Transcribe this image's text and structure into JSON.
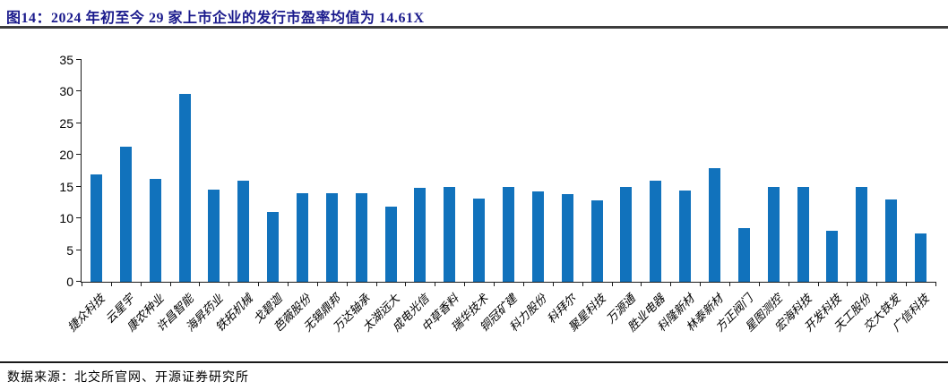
{
  "title": "图14：2024 年初至今 29 家上市企业的发行市盈率均值为 14.61X",
  "footer": {
    "source": "数据来源：北交所官网、开源证券研究所"
  },
  "colors": {
    "title_text": "#1a1a8c",
    "bar": "#1172bc",
    "axis": "#1a1a1a",
    "rule": "#3d3d3d"
  },
  "chart_data": {
    "type": "bar",
    "title": "2024 年初至今 29 家上市企业的发行市盈率均值为 14.61X",
    "categories": [
      "捷众科技",
      "云星宇",
      "康农种业",
      "许昌智能",
      "海昇药业",
      "铁拓机械",
      "戈碧迦",
      "芭薇股份",
      "无锡鼎邦",
      "万达轴承",
      "太湖远大",
      "成电光信",
      "中草香料",
      "瑞华技术",
      "铜冠矿建",
      "科力股份",
      "科拜尔",
      "聚星科技",
      "万源通",
      "胜业电器",
      "科隆新材",
      "林泰新材",
      "方正阀门",
      "星图测控",
      "宏海科技",
      "开发科技",
      "天工股份",
      "交大铁发",
      "广信科技"
    ],
    "values": [
      17.0,
      21.3,
      16.3,
      29.7,
      14.5,
      16.0,
      11.0,
      14.0,
      14.0,
      14.0,
      11.8,
      14.8,
      15.0,
      13.1,
      15.0,
      14.2,
      13.9,
      12.8,
      15.0,
      16.0,
      14.4,
      17.9,
      8.4,
      15.0,
      15.0,
      8.1,
      15.0,
      13.0,
      7.6
    ],
    "mean": 14.61,
    "xlabel": "",
    "ylabel": "",
    "ylim": [
      0,
      35
    ],
    "yticks": [
      0,
      5,
      10,
      15,
      20,
      25,
      30,
      35
    ],
    "grid": false,
    "legend": false,
    "bar_color": "#1172bc",
    "x_label_rotation_deg": 45
  }
}
